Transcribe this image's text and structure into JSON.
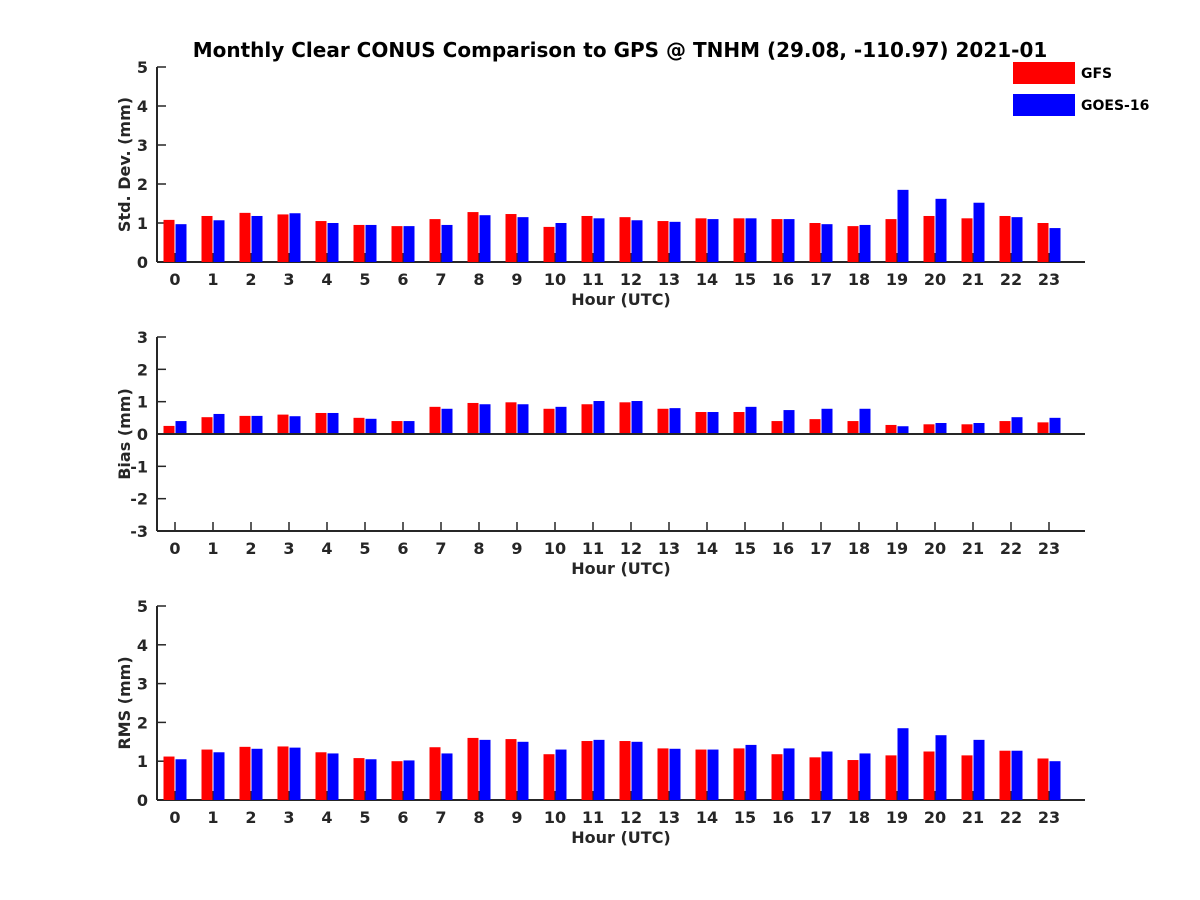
{
  "title": "Monthly Clear CONUS Comparison to GPS @ TNHM (29.08, -110.97) 2021-01",
  "legend": {
    "placement": "top-right",
    "entries": [
      {
        "name": "GFS",
        "color": "#ff0000"
      },
      {
        "name": "GOES-16",
        "color": "#0000ff"
      }
    ]
  },
  "chart_data": [
    {
      "type": "bar",
      "ylabel": "Std. Dev. (mm)",
      "xlabel": "Hour (UTC)",
      "ylim": [
        0,
        5
      ],
      "yticks": [
        0,
        1,
        2,
        3,
        4,
        5
      ],
      "categories": [
        "0",
        "1",
        "2",
        "3",
        "4",
        "5",
        "6",
        "7",
        "8",
        "9",
        "10",
        "11",
        "12",
        "13",
        "14",
        "15",
        "16",
        "17",
        "18",
        "19",
        "20",
        "21",
        "22",
        "23"
      ],
      "series": [
        {
          "name": "GFS",
          "color": "#ff0000",
          "values": [
            1.08,
            1.18,
            1.26,
            1.22,
            1.05,
            0.95,
            0.92,
            1.1,
            1.28,
            1.23,
            0.9,
            1.18,
            1.15,
            1.05,
            1.12,
            1.12,
            1.1,
            1.0,
            0.92,
            1.1,
            1.18,
            1.12,
            1.18,
            1.0
          ]
        },
        {
          "name": "GOES-16",
          "color": "#0000ff",
          "values": [
            0.97,
            1.07,
            1.18,
            1.25,
            1.0,
            0.95,
            0.92,
            0.95,
            1.2,
            1.15,
            1.0,
            1.12,
            1.07,
            1.03,
            1.1,
            1.12,
            1.1,
            0.97,
            0.95,
            1.85,
            1.62,
            1.52,
            1.15,
            0.87
          ]
        }
      ]
    },
    {
      "type": "bar",
      "ylabel": "Bias (mm)",
      "xlabel": "Hour (UTC)",
      "ylim": [
        -3,
        3
      ],
      "yticks": [
        -3,
        -2,
        -1,
        0,
        1,
        2,
        3
      ],
      "categories": [
        "0",
        "1",
        "2",
        "3",
        "4",
        "5",
        "6",
        "7",
        "8",
        "9",
        "10",
        "11",
        "12",
        "13",
        "14",
        "15",
        "16",
        "17",
        "18",
        "19",
        "20",
        "21",
        "22",
        "23"
      ],
      "series": [
        {
          "name": "GFS",
          "color": "#ff0000",
          "values": [
            0.25,
            0.52,
            0.56,
            0.6,
            0.65,
            0.5,
            0.4,
            0.84,
            0.96,
            0.98,
            0.78,
            0.92,
            0.98,
            0.78,
            0.68,
            0.68,
            0.4,
            0.46,
            0.4,
            0.28,
            0.3,
            0.3,
            0.4,
            0.36
          ]
        },
        {
          "name": "GOES-16",
          "color": "#0000ff",
          "values": [
            0.4,
            0.62,
            0.56,
            0.55,
            0.65,
            0.47,
            0.4,
            0.78,
            0.92,
            0.92,
            0.84,
            1.02,
            1.02,
            0.8,
            0.68,
            0.84,
            0.74,
            0.78,
            0.78,
            0.24,
            0.34,
            0.34,
            0.52,
            0.5
          ]
        }
      ]
    },
    {
      "type": "bar",
      "ylabel": "RMS (mm)",
      "xlabel": "Hour (UTC)",
      "ylim": [
        0,
        5
      ],
      "yticks": [
        0,
        1,
        2,
        3,
        4,
        5
      ],
      "categories": [
        "0",
        "1",
        "2",
        "3",
        "4",
        "5",
        "6",
        "7",
        "8",
        "9",
        "10",
        "11",
        "12",
        "13",
        "14",
        "15",
        "16",
        "17",
        "18",
        "19",
        "20",
        "21",
        "22",
        "23"
      ],
      "series": [
        {
          "name": "GFS",
          "color": "#ff0000",
          "values": [
            1.12,
            1.3,
            1.37,
            1.38,
            1.23,
            1.08,
            1.0,
            1.36,
            1.6,
            1.57,
            1.18,
            1.52,
            1.52,
            1.33,
            1.3,
            1.33,
            1.18,
            1.1,
            1.03,
            1.15,
            1.25,
            1.15,
            1.27,
            1.07
          ]
        },
        {
          "name": "GOES-16",
          "color": "#0000ff",
          "values": [
            1.05,
            1.23,
            1.32,
            1.35,
            1.2,
            1.05,
            1.02,
            1.2,
            1.55,
            1.5,
            1.3,
            1.55,
            1.5,
            1.32,
            1.3,
            1.42,
            1.33,
            1.25,
            1.2,
            1.85,
            1.67,
            1.55,
            1.27,
            1.0
          ]
        }
      ]
    }
  ]
}
